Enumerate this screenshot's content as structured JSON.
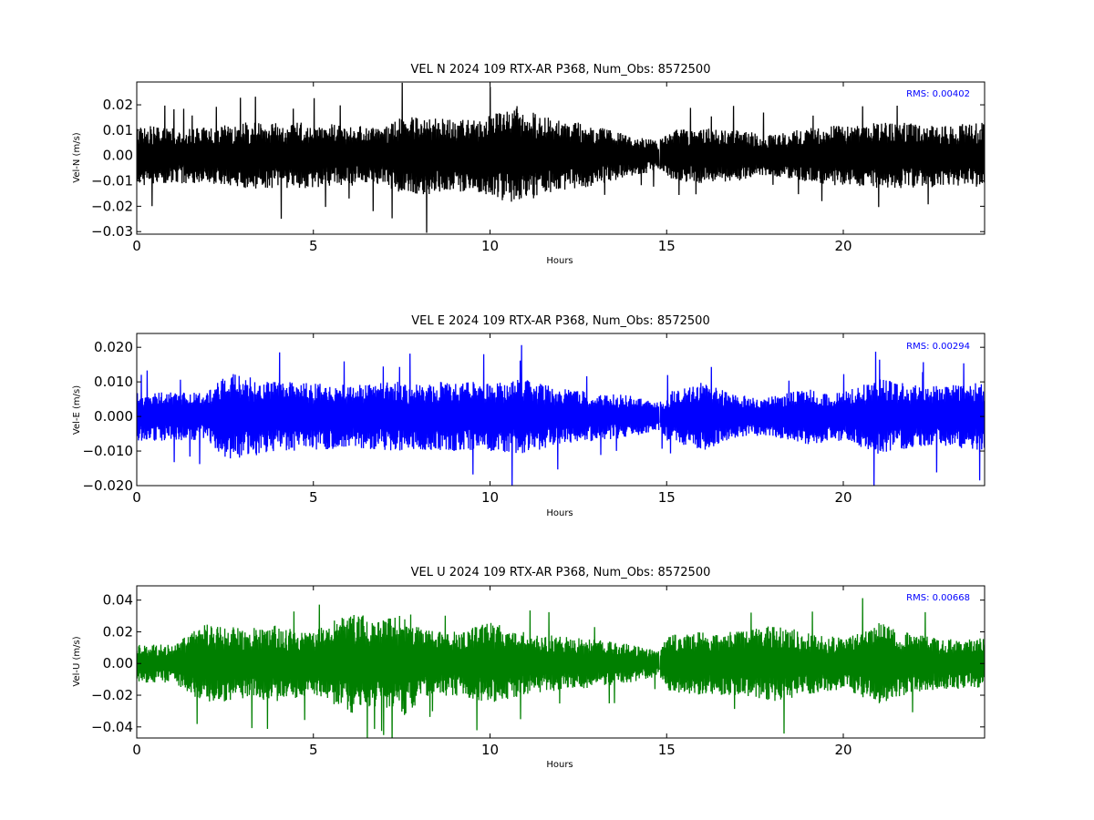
{
  "chart_data": [
    {
      "type": "line",
      "title": "VEL N 2024 109 RTX-AR  P368, Num_Obs: 8572500",
      "xlabel": "Hours",
      "ylabel": "Vel-N (m/s)",
      "xlim": [
        0,
        24
      ],
      "ylim": [
        -0.031,
        0.029
      ],
      "xticks": [
        0,
        5,
        10,
        15,
        20
      ],
      "xtick_labels": [
        "0",
        "5",
        "10",
        "15",
        "20"
      ],
      "yticks": [
        -0.03,
        -0.02,
        -0.01,
        0.0,
        0.01,
        0.02
      ],
      "ytick_labels": [
        "−0.03",
        "−0.02",
        "−0.01",
        "0.00",
        "0.01",
        "0.02"
      ],
      "color": "#000000",
      "rms_label": "RMS:  0.00402",
      "rms_color": "#0000ff",
      "gap_hour": 14.8,
      "series": [
        {
          "x": [
            0,
            1,
            2,
            3,
            4,
            5,
            6,
            7,
            7.5,
            8,
            9,
            10,
            10.8,
            11,
            12,
            13,
            14,
            14.8,
            15,
            16,
            17,
            18,
            19,
            20,
            21,
            22,
            23,
            24
          ],
          "amplitude": [
            0.012,
            0.011,
            0.011,
            0.013,
            0.013,
            0.013,
            0.012,
            0.011,
            0.016,
            0.016,
            0.014,
            0.016,
            0.02,
            0.018,
            0.014,
            0.012,
            0.008,
            0.006,
            0.01,
            0.011,
            0.01,
            0.008,
            0.011,
            0.012,
            0.013,
            0.013,
            0.012,
            0.013
          ]
        }
      ]
    },
    {
      "type": "line",
      "title": "VEL E 2024 109 RTX-AR  P368, Num_Obs: 8572500",
      "xlabel": "Hours",
      "ylabel": "Vel-E (m/s)",
      "xlim": [
        0,
        24
      ],
      "ylim": [
        -0.02,
        0.024
      ],
      "xticks": [
        0,
        5,
        10,
        15,
        20
      ],
      "xtick_labels": [
        "0",
        "5",
        "10",
        "15",
        "20"
      ],
      "yticks": [
        -0.02,
        -0.01,
        0.0,
        0.01,
        0.02
      ],
      "ytick_labels": [
        "−0.020",
        "−0.010",
        "0.000",
        "0.010",
        "0.020"
      ],
      "color": "#0000ff",
      "rms_label": "RMS:  0.00294",
      "rms_color": "#0000ff",
      "gap_hour": 14.8,
      "series": [
        {
          "x": [
            0,
            1,
            2,
            2.5,
            3,
            4,
            5,
            6,
            7,
            8,
            9,
            10,
            11,
            12,
            13,
            14,
            14.8,
            15,
            16,
            17,
            18,
            19,
            20,
            21,
            22,
            23,
            24
          ],
          "amplitude": [
            0.007,
            0.007,
            0.007,
            0.013,
            0.012,
            0.01,
            0.01,
            0.009,
            0.01,
            0.01,
            0.01,
            0.01,
            0.011,
            0.008,
            0.007,
            0.006,
            0.004,
            0.007,
            0.01,
            0.006,
            0.006,
            0.008,
            0.007,
            0.011,
            0.009,
            0.009,
            0.01
          ]
        }
      ]
    },
    {
      "type": "line",
      "title": "VEL U 2024 109 RTX-AR  P368, Num_Obs: 8572500",
      "xlabel": "Hours",
      "ylabel": "Vel-U (m/s)",
      "xlim": [
        0,
        24
      ],
      "ylim": [
        -0.047,
        0.049
      ],
      "xticks": [
        0,
        5,
        10,
        15,
        20
      ],
      "xtick_labels": [
        "0",
        "5",
        "10",
        "15",
        "20"
      ],
      "yticks": [
        -0.04,
        -0.02,
        0.0,
        0.02,
        0.04
      ],
      "ytick_labels": [
        "−0.04",
        "−0.02",
        "0.00",
        "0.02",
        "0.04"
      ],
      "color": "#007f00",
      "rms_label": "RMS:  0.00668",
      "rms_color": "#0000ff",
      "gap_hour": 14.8,
      "series": [
        {
          "x": [
            0,
            1,
            2,
            3,
            4,
            5,
            6,
            7,
            7.7,
            8,
            9,
            10,
            11,
            12,
            13,
            14,
            14.8,
            15,
            16,
            17,
            18,
            19,
            20,
            21,
            22,
            23,
            24
          ],
          "amplitude": [
            0.012,
            0.012,
            0.026,
            0.022,
            0.024,
            0.02,
            0.032,
            0.028,
            0.034,
            0.022,
            0.02,
            0.026,
            0.02,
            0.017,
            0.015,
            0.012,
            0.008,
            0.018,
            0.02,
            0.02,
            0.024,
            0.02,
            0.016,
            0.026,
            0.018,
            0.016,
            0.016
          ]
        }
      ]
    }
  ]
}
